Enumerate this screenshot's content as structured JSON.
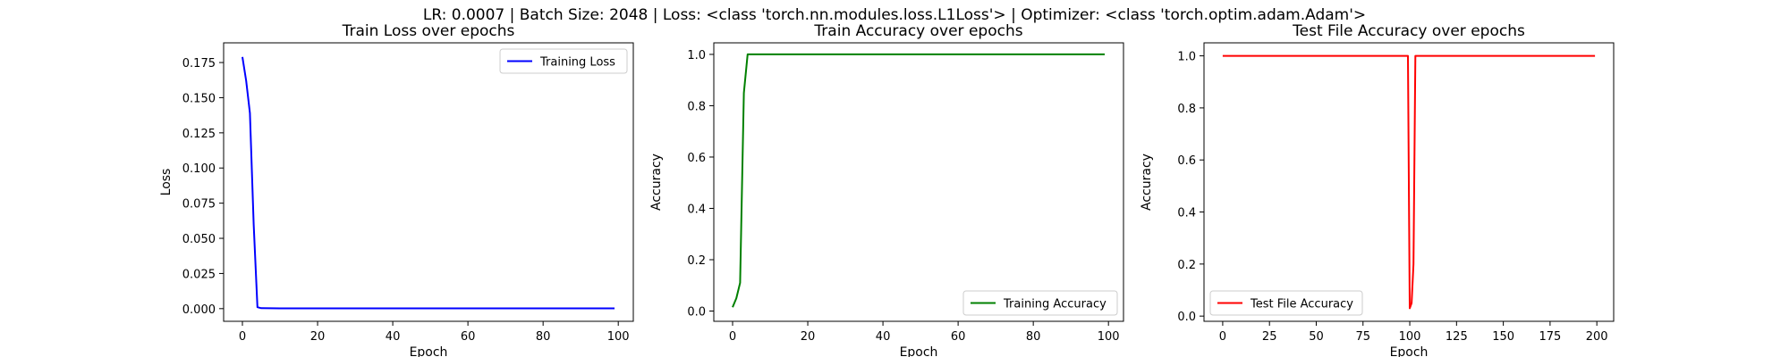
{
  "figure": {
    "suptitle": "LR: 0.0007 | Batch Size: 2048 | Loss: <class 'torch.nn.modules.loss.L1Loss'> | Optimizer: <class 'torch.optim.adam.Adam'>"
  },
  "chart_data": [
    {
      "type": "line",
      "title": "Train Loss over epochs",
      "xlabel": "Epoch",
      "ylabel": "Loss",
      "xlim": [
        -5,
        104
      ],
      "ylim": [
        -0.009,
        0.189
      ],
      "xticks": [
        0,
        20,
        40,
        60,
        80,
        100
      ],
      "yticks": [
        0.0,
        0.025,
        0.05,
        0.075,
        0.1,
        0.125,
        0.15,
        0.175
      ],
      "ytick_labels": [
        "0.000",
        "0.025",
        "0.050",
        "0.075",
        "0.100",
        "0.125",
        "0.150",
        "0.175"
      ],
      "legend_position": "upper right",
      "grid": false,
      "series": [
        {
          "name": "Training Loss",
          "color": "#0000ff",
          "x": [
            0,
            1,
            2,
            3,
            4,
            5,
            10,
            20,
            30,
            40,
            50,
            60,
            70,
            80,
            90,
            99
          ],
          "y": [
            0.179,
            0.162,
            0.139,
            0.06,
            0.001,
            0.0003,
            0.0002,
            0.0002,
            0.0002,
            0.0002,
            0.0002,
            0.0002,
            0.0002,
            0.0002,
            0.0002,
            0.0002
          ]
        }
      ]
    },
    {
      "type": "line",
      "title": "Train Accuracy over epochs",
      "xlabel": "Epoch",
      "ylabel": "Accuracy",
      "xlim": [
        -5,
        104
      ],
      "ylim": [
        -0.04,
        1.045
      ],
      "xticks": [
        0,
        20,
        40,
        60,
        80,
        100
      ],
      "yticks": [
        0.0,
        0.2,
        0.4,
        0.6,
        0.8,
        1.0
      ],
      "ytick_labels": [
        "0.0",
        "0.2",
        "0.4",
        "0.6",
        "0.8",
        "1.0"
      ],
      "legend_position": "lower right",
      "grid": false,
      "series": [
        {
          "name": "Training Accuracy",
          "color": "#008000",
          "x": [
            0,
            1,
            2,
            3,
            4,
            5,
            10,
            20,
            30,
            40,
            50,
            60,
            70,
            80,
            90,
            99
          ],
          "y": [
            0.015,
            0.05,
            0.11,
            0.85,
            1.0,
            1.0,
            1.0,
            1.0,
            1.0,
            1.0,
            1.0,
            1.0,
            1.0,
            1.0,
            1.0,
            1.0
          ]
        }
      ]
    },
    {
      "type": "line",
      "title": "Test File Accuracy over epochs",
      "xlabel": "Epoch",
      "ylabel": "Accuracy",
      "xlim": [
        -10,
        209
      ],
      "ylim": [
        -0.02,
        1.05
      ],
      "xticks": [
        0,
        25,
        50,
        75,
        100,
        125,
        150,
        175,
        200
      ],
      "yticks": [
        0.0,
        0.2,
        0.4,
        0.6,
        0.8,
        1.0
      ],
      "ytick_labels": [
        "0.0",
        "0.2",
        "0.4",
        "0.6",
        "0.8",
        "1.0"
      ],
      "legend_position": "lower left",
      "grid": false,
      "series": [
        {
          "name": "Test File Accuracy",
          "color": "#ff0000",
          "x": [
            0,
            50,
            99,
            100,
            101,
            102,
            103,
            104,
            150,
            199
          ],
          "y": [
            1.0,
            1.0,
            1.0,
            0.03,
            0.05,
            0.2,
            1.0,
            1.0,
            1.0,
            1.0
          ]
        }
      ]
    }
  ]
}
